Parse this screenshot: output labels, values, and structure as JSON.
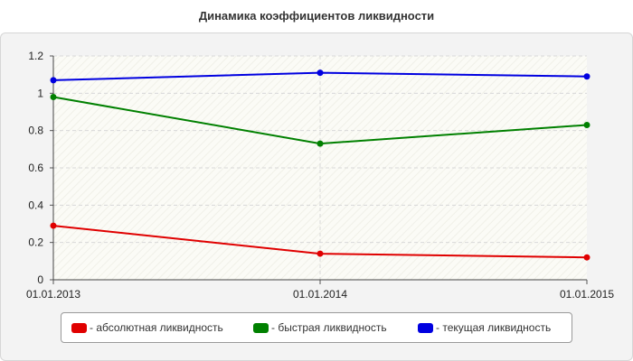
{
  "chart_data": {
    "type": "line",
    "title": "Динамика коэффициентов ликвидности",
    "xlabel": "",
    "ylabel": "",
    "categories": [
      "01.01.2013",
      "01.01.2014",
      "01.01.2015"
    ],
    "ylim": [
      0,
      1.2
    ],
    "yticks": [
      "0",
      "0.2",
      "0.4",
      "0.6",
      "0.8",
      "1",
      "1.2"
    ],
    "grid": true,
    "legend_position": "bottom",
    "series": [
      {
        "name": "- абсолютная ликвидность",
        "color": "#e00000",
        "values": [
          0.29,
          0.14,
          0.12
        ]
      },
      {
        "name": "- быстрая ликвидность",
        "color": "#008000",
        "values": [
          0.98,
          0.73,
          0.83
        ]
      },
      {
        "name": "- текущая ликвидность",
        "color": "#0000e0",
        "values": [
          1.07,
          1.11,
          1.09
        ]
      }
    ]
  }
}
